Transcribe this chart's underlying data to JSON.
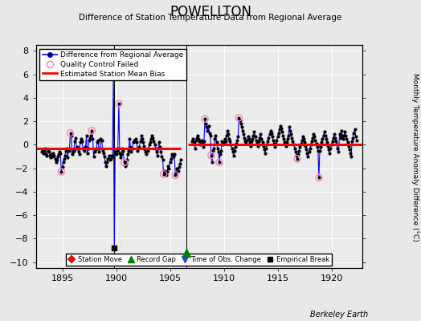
{
  "title": "POWELLTON",
  "subtitle": "Difference of Station Temperature Data from Regional Average",
  "ylabel_right": "Monthly Temperature Anomaly Difference (°C)",
  "credit": "Berkeley Earth",
  "xlim": [
    1892.5,
    1922.8
  ],
  "ylim": [
    -10.5,
    8.5
  ],
  "yticks": [
    -10,
    -8,
    -6,
    -4,
    -2,
    0,
    2,
    4,
    6,
    8
  ],
  "xticks": [
    1895,
    1900,
    1905,
    1910,
    1915,
    1920
  ],
  "bg_color": "#e8e8e8",
  "plot_bg_color": "#ebebeb",
  "line_color": "#0000ff",
  "dot_color": "#000000",
  "qc_color": "#ff80c0",
  "bias_color": "#ff0000",
  "segment1_bias": -0.35,
  "segment1_start": 1892.5,
  "segment1_end": 1906.0,
  "segment2_bias": 0.05,
  "segment2_start": 1906.6,
  "segment2_end": 1922.8,
  "gap_marker_x": 1906.5,
  "gap_marker_y": -9.2,
  "empirical_break_x": 1899.75,
  "empirical_break_y": -8.8,
  "vertical_event_x1": 1899.75,
  "vertical_event_x2": 1906.5,
  "time_series": [
    [
      1893.04,
      -0.6
    ],
    [
      1893.12,
      -0.4
    ],
    [
      1893.21,
      -0.7
    ],
    [
      1893.29,
      -0.5
    ],
    [
      1893.37,
      -0.3
    ],
    [
      1893.46,
      -0.8
    ],
    [
      1893.54,
      -0.9
    ],
    [
      1893.62,
      -0.5
    ],
    [
      1893.71,
      -0.6
    ],
    [
      1893.79,
      -0.9
    ],
    [
      1893.87,
      -1.1
    ],
    [
      1893.96,
      -0.8
    ],
    [
      1894.04,
      -1.0
    ],
    [
      1894.12,
      -0.7
    ],
    [
      1894.21,
      -0.9
    ],
    [
      1894.29,
      -1.2
    ],
    [
      1894.37,
      -1.5
    ],
    [
      1894.46,
      -1.3
    ],
    [
      1894.54,
      -1.0
    ],
    [
      1894.62,
      -0.8
    ],
    [
      1894.71,
      -0.6
    ],
    [
      1894.79,
      -0.7
    ],
    [
      1894.87,
      -2.3
    ],
    [
      1894.96,
      -1.9
    ],
    [
      1895.04,
      -1.5
    ],
    [
      1895.12,
      -1.2
    ],
    [
      1895.21,
      -0.9
    ],
    [
      1895.29,
      -0.5
    ],
    [
      1895.37,
      -0.3
    ],
    [
      1895.46,
      -1.1
    ],
    [
      1895.54,
      -0.4
    ],
    [
      1895.62,
      -0.5
    ],
    [
      1895.71,
      1.0
    ],
    [
      1895.79,
      0.8
    ],
    [
      1895.87,
      -0.8
    ],
    [
      1895.96,
      -0.6
    ],
    [
      1896.04,
      -0.5
    ],
    [
      1896.12,
      0.3
    ],
    [
      1896.21,
      0.6
    ],
    [
      1896.29,
      -0.3
    ],
    [
      1896.37,
      -0.2
    ],
    [
      1896.46,
      -0.6
    ],
    [
      1896.54,
      -0.8
    ],
    [
      1896.62,
      0.2
    ],
    [
      1896.71,
      0.5
    ],
    [
      1896.79,
      0.3
    ],
    [
      1896.87,
      -0.3
    ],
    [
      1896.96,
      -0.4
    ],
    [
      1897.04,
      -0.5
    ],
    [
      1897.12,
      -0.2
    ],
    [
      1897.21,
      0.8
    ],
    [
      1897.29,
      -0.7
    ],
    [
      1897.37,
      -0.3
    ],
    [
      1897.46,
      0.4
    ],
    [
      1897.54,
      0.6
    ],
    [
      1897.62,
      0.8
    ],
    [
      1897.71,
      1.2
    ],
    [
      1897.79,
      0.5
    ],
    [
      1897.87,
      -1.0
    ],
    [
      1897.96,
      -0.6
    ],
    [
      1898.04,
      -0.4
    ],
    [
      1898.12,
      -0.3
    ],
    [
      1898.21,
      0.2
    ],
    [
      1898.29,
      0.4
    ],
    [
      1898.37,
      -0.6
    ],
    [
      1898.46,
      -0.3
    ],
    [
      1898.54,
      0.5
    ],
    [
      1898.62,
      0.4
    ],
    [
      1898.71,
      -0.5
    ],
    [
      1898.79,
      -0.7
    ],
    [
      1898.87,
      -1.0
    ],
    [
      1898.96,
      -1.5
    ],
    [
      1899.04,
      -1.8
    ],
    [
      1899.12,
      -1.5
    ],
    [
      1899.21,
      -1.2
    ],
    [
      1899.29,
      -0.9
    ],
    [
      1899.37,
      -1.3
    ],
    [
      1899.46,
      -1.2
    ],
    [
      1899.54,
      -0.9
    ],
    [
      1899.62,
      -1.0
    ],
    [
      1899.71,
      6.0
    ],
    [
      1899.79,
      -8.8
    ],
    [
      1899.87,
      -0.6
    ],
    [
      1899.96,
      -0.8
    ],
    [
      1900.04,
      -0.5
    ],
    [
      1900.12,
      -0.3
    ],
    [
      1900.21,
      3.5
    ],
    [
      1900.29,
      -0.7
    ],
    [
      1900.37,
      -1.1
    ],
    [
      1900.46,
      -0.8
    ],
    [
      1900.54,
      -0.3
    ],
    [
      1900.62,
      -0.5
    ],
    [
      1900.71,
      -1.5
    ],
    [
      1900.79,
      -1.8
    ],
    [
      1900.87,
      -1.6
    ],
    [
      1900.96,
      -1.3
    ],
    [
      1901.04,
      -0.8
    ],
    [
      1901.12,
      -0.5
    ],
    [
      1901.21,
      0.5
    ],
    [
      1901.29,
      -0.2
    ],
    [
      1901.37,
      -0.6
    ],
    [
      1901.46,
      -0.3
    ],
    [
      1901.54,
      0.2
    ],
    [
      1901.62,
      0.4
    ],
    [
      1901.71,
      0.3
    ],
    [
      1901.79,
      0.5
    ],
    [
      1901.87,
      0.2
    ],
    [
      1901.96,
      -0.5
    ],
    [
      1902.04,
      -0.3
    ],
    [
      1902.12,
      -0.2
    ],
    [
      1902.21,
      0.3
    ],
    [
      1902.29,
      0.8
    ],
    [
      1902.37,
      0.5
    ],
    [
      1902.46,
      0.2
    ],
    [
      1902.54,
      -0.1
    ],
    [
      1902.62,
      -0.4
    ],
    [
      1902.71,
      -0.6
    ],
    [
      1902.79,
      -0.8
    ],
    [
      1902.87,
      -0.5
    ],
    [
      1902.96,
      -0.3
    ],
    [
      1903.04,
      0.0
    ],
    [
      1903.12,
      0.2
    ],
    [
      1903.21,
      0.5
    ],
    [
      1903.29,
      0.8
    ],
    [
      1903.37,
      0.6
    ],
    [
      1903.46,
      0.3
    ],
    [
      1903.54,
      0.0
    ],
    [
      1903.62,
      -0.3
    ],
    [
      1903.71,
      -0.6
    ],
    [
      1903.79,
      -0.9
    ],
    [
      1903.87,
      -0.3
    ],
    [
      1903.96,
      0.2
    ],
    [
      1904.04,
      -0.2
    ],
    [
      1904.12,
      -0.6
    ],
    [
      1904.21,
      -1.0
    ],
    [
      1904.29,
      -1.3
    ],
    [
      1904.37,
      -2.5
    ],
    [
      1904.46,
      -2.2
    ],
    [
      1904.54,
      -2.4
    ],
    [
      1904.62,
      -2.6
    ],
    [
      1904.71,
      -2.3
    ],
    [
      1904.79,
      -1.8
    ],
    [
      1904.87,
      -2.0
    ],
    [
      1904.96,
      -1.5
    ],
    [
      1905.04,
      -1.2
    ],
    [
      1905.12,
      -0.8
    ],
    [
      1905.21,
      -0.9
    ],
    [
      1905.29,
      -1.0
    ],
    [
      1905.37,
      -0.8
    ],
    [
      1905.46,
      -2.6
    ],
    [
      1905.54,
      -2.4
    ],
    [
      1905.62,
      -2.0
    ],
    [
      1905.71,
      -2.2
    ],
    [
      1905.79,
      -1.9
    ],
    [
      1905.87,
      -1.6
    ],
    [
      1905.96,
      -1.3
    ],
    [
      1907.04,
      0.3
    ],
    [
      1907.12,
      0.5
    ],
    [
      1907.21,
      0.2
    ],
    [
      1907.29,
      -0.3
    ],
    [
      1907.37,
      0.4
    ],
    [
      1907.46,
      0.6
    ],
    [
      1907.54,
      0.8
    ],
    [
      1907.62,
      0.5
    ],
    [
      1907.71,
      0.3
    ],
    [
      1907.79,
      0.0
    ],
    [
      1907.87,
      0.4
    ],
    [
      1907.96,
      0.2
    ],
    [
      1908.04,
      -0.2
    ],
    [
      1908.12,
      0.3
    ],
    [
      1908.21,
      2.2
    ],
    [
      1908.29,
      1.8
    ],
    [
      1908.37,
      1.5
    ],
    [
      1908.46,
      1.2
    ],
    [
      1908.54,
      1.6
    ],
    [
      1908.62,
      1.0
    ],
    [
      1908.71,
      0.8
    ],
    [
      1908.79,
      -0.9
    ],
    [
      1908.87,
      -1.5
    ],
    [
      1908.96,
      -0.5
    ],
    [
      1909.04,
      -0.3
    ],
    [
      1909.12,
      0.5
    ],
    [
      1909.21,
      0.8
    ],
    [
      1909.29,
      0.2
    ],
    [
      1909.37,
      -0.3
    ],
    [
      1909.46,
      -0.6
    ],
    [
      1909.54,
      -1.5
    ],
    [
      1909.62,
      -0.8
    ],
    [
      1909.71,
      -0.5
    ],
    [
      1909.79,
      0.3
    ],
    [
      1909.87,
      0.0
    ],
    [
      1909.96,
      0.2
    ],
    [
      1910.04,
      0.5
    ],
    [
      1910.12,
      0.3
    ],
    [
      1910.21,
      0.8
    ],
    [
      1910.29,
      1.2
    ],
    [
      1910.37,
      0.9
    ],
    [
      1910.46,
      0.5
    ],
    [
      1910.54,
      0.3
    ],
    [
      1910.62,
      0.0
    ],
    [
      1910.71,
      -0.3
    ],
    [
      1910.79,
      -0.6
    ],
    [
      1910.87,
      -0.9
    ],
    [
      1910.96,
      -0.5
    ],
    [
      1911.04,
      -0.2
    ],
    [
      1911.12,
      0.1
    ],
    [
      1911.21,
      0.4
    ],
    [
      1911.29,
      0.7
    ],
    [
      1911.37,
      2.3
    ],
    [
      1911.46,
      2.1
    ],
    [
      1911.54,
      1.8
    ],
    [
      1911.62,
      1.5
    ],
    [
      1911.71,
      1.2
    ],
    [
      1911.79,
      0.9
    ],
    [
      1911.87,
      0.6
    ],
    [
      1911.96,
      0.3
    ],
    [
      1912.04,
      0.1
    ],
    [
      1912.12,
      0.4
    ],
    [
      1912.21,
      0.7
    ],
    [
      1912.29,
      0.5
    ],
    [
      1912.37,
      0.2
    ],
    [
      1912.46,
      -0.1
    ],
    [
      1912.54,
      0.3
    ],
    [
      1912.62,
      0.5
    ],
    [
      1912.71,
      0.8
    ],
    [
      1912.79,
      1.1
    ],
    [
      1912.87,
      0.7
    ],
    [
      1912.96,
      0.4
    ],
    [
      1913.04,
      0.2
    ],
    [
      1913.12,
      -0.1
    ],
    [
      1913.21,
      0.3
    ],
    [
      1913.29,
      0.6
    ],
    [
      1913.37,
      0.9
    ],
    [
      1913.46,
      0.5
    ],
    [
      1913.54,
      0.2
    ],
    [
      1913.62,
      -0.1
    ],
    [
      1913.71,
      -0.4
    ],
    [
      1913.79,
      -0.7
    ],
    [
      1913.87,
      -0.3
    ],
    [
      1913.96,
      0.0
    ],
    [
      1914.04,
      0.3
    ],
    [
      1914.12,
      0.6
    ],
    [
      1914.21,
      0.9
    ],
    [
      1914.29,
      1.2
    ],
    [
      1914.37,
      1.0
    ],
    [
      1914.46,
      0.7
    ],
    [
      1914.54,
      0.4
    ],
    [
      1914.62,
      0.1
    ],
    [
      1914.71,
      -0.2
    ],
    [
      1914.79,
      0.1
    ],
    [
      1914.87,
      0.4
    ],
    [
      1914.96,
      0.7
    ],
    [
      1915.04,
      1.0
    ],
    [
      1915.12,
      1.3
    ],
    [
      1915.21,
      1.6
    ],
    [
      1915.29,
      1.4
    ],
    [
      1915.37,
      1.1
    ],
    [
      1915.46,
      0.8
    ],
    [
      1915.54,
      0.5
    ],
    [
      1915.62,
      0.2
    ],
    [
      1915.71,
      -0.1
    ],
    [
      1915.79,
      0.2
    ],
    [
      1915.87,
      0.5
    ],
    [
      1915.96,
      0.8
    ],
    [
      1916.04,
      1.5
    ],
    [
      1916.12,
      1.2
    ],
    [
      1916.21,
      0.9
    ],
    [
      1916.29,
      0.6
    ],
    [
      1916.37,
      0.3
    ],
    [
      1916.46,
      0.0
    ],
    [
      1916.54,
      -0.3
    ],
    [
      1916.62,
      -0.6
    ],
    [
      1916.71,
      -0.9
    ],
    [
      1916.79,
      -1.2
    ],
    [
      1916.87,
      -0.8
    ],
    [
      1916.96,
      -0.5
    ],
    [
      1917.04,
      -0.2
    ],
    [
      1917.12,
      0.1
    ],
    [
      1917.21,
      0.4
    ],
    [
      1917.29,
      0.7
    ],
    [
      1917.37,
      0.5
    ],
    [
      1917.46,
      0.2
    ],
    [
      1917.54,
      -0.1
    ],
    [
      1917.62,
      -0.4
    ],
    [
      1917.71,
      -0.7
    ],
    [
      1917.79,
      -1.0
    ],
    [
      1917.87,
      -0.6
    ],
    [
      1917.96,
      -0.3
    ],
    [
      1918.04,
      0.0
    ],
    [
      1918.12,
      0.3
    ],
    [
      1918.21,
      0.6
    ],
    [
      1918.29,
      0.9
    ],
    [
      1918.37,
      0.7
    ],
    [
      1918.46,
      0.4
    ],
    [
      1918.54,
      0.1
    ],
    [
      1918.62,
      -0.2
    ],
    [
      1918.71,
      -0.5
    ],
    [
      1918.79,
      -2.8
    ],
    [
      1918.87,
      -0.5
    ],
    [
      1918.96,
      -0.2
    ],
    [
      1919.04,
      0.2
    ],
    [
      1919.12,
      0.5
    ],
    [
      1919.21,
      0.8
    ],
    [
      1919.29,
      1.1
    ],
    [
      1919.37,
      0.8
    ],
    [
      1919.46,
      0.5
    ],
    [
      1919.54,
      0.2
    ],
    [
      1919.62,
      -0.1
    ],
    [
      1919.71,
      -0.4
    ],
    [
      1919.79,
      -0.7
    ],
    [
      1919.87,
      -0.3
    ],
    [
      1919.96,
      0.0
    ],
    [
      1920.04,
      0.3
    ],
    [
      1920.12,
      0.6
    ],
    [
      1920.21,
      0.9
    ],
    [
      1920.29,
      0.6
    ],
    [
      1920.37,
      0.3
    ],
    [
      1920.46,
      0.0
    ],
    [
      1920.54,
      -0.3
    ],
    [
      1920.62,
      -0.6
    ],
    [
      1920.71,
      0.9
    ],
    [
      1920.79,
      0.6
    ],
    [
      1920.87,
      1.2
    ],
    [
      1920.96,
      0.8
    ],
    [
      1921.04,
      0.5
    ],
    [
      1921.12,
      0.8
    ],
    [
      1921.21,
      1.1
    ],
    [
      1921.29,
      0.8
    ],
    [
      1921.37,
      0.5
    ],
    [
      1921.46,
      0.2
    ],
    [
      1921.54,
      -0.1
    ],
    [
      1921.62,
      -0.4
    ],
    [
      1921.71,
      -0.7
    ],
    [
      1921.79,
      -1.0
    ],
    [
      1921.87,
      0.3
    ],
    [
      1921.96,
      0.6
    ],
    [
      1922.04,
      1.0
    ],
    [
      1922.12,
      1.3
    ],
    [
      1922.21,
      0.7
    ],
    [
      1922.29,
      0.4
    ]
  ],
  "qc_failed": [
    [
      1894.87,
      -2.3
    ],
    [
      1895.71,
      1.0
    ],
    [
      1897.71,
      1.2
    ],
    [
      1899.71,
      6.0
    ],
    [
      1900.21,
      3.5
    ],
    [
      1900.71,
      -1.5
    ],
    [
      1904.37,
      -2.5
    ],
    [
      1905.46,
      -2.6
    ],
    [
      1908.21,
      2.2
    ],
    [
      1908.79,
      -0.9
    ],
    [
      1909.54,
      -1.5
    ],
    [
      1911.37,
      2.3
    ],
    [
      1916.79,
      -1.2
    ],
    [
      1918.79,
      -2.8
    ]
  ]
}
